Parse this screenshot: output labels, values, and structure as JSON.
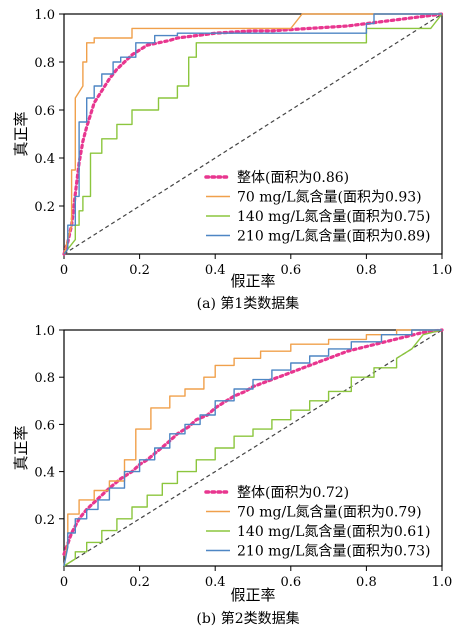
{
  "chart_data": [
    {
      "type": "line",
      "caption": "(a) 第1类数据集",
      "xlabel": "假正率",
      "ylabel": "真正率",
      "xlim": [
        0,
        1
      ],
      "ylim": [
        0,
        1
      ],
      "xticks": [
        "0",
        "0.2",
        "0.4",
        "0.6",
        "0.8",
        "1.0"
      ],
      "yticks": [
        "0.2",
        "0.4",
        "0.6",
        "0.8",
        "1.0"
      ],
      "legend_position": "bottom-right",
      "diagonal": true,
      "series": [
        {
          "name": "整体(面积为0.86)",
          "color": "#e8368f",
          "dash": "dotted",
          "x": [
            0,
            0.01,
            0.02,
            0.03,
            0.04,
            0.05,
            0.06,
            0.07,
            0.08,
            0.1,
            0.12,
            0.14,
            0.16,
            0.18,
            0.2,
            0.22,
            0.25,
            0.28,
            0.3,
            0.35,
            0.4,
            0.45,
            0.5,
            0.55,
            0.6,
            0.65,
            0.7,
            0.75,
            0.8,
            0.85,
            0.9,
            0.95,
            1.0
          ],
          "y": [
            0,
            0.05,
            0.12,
            0.25,
            0.38,
            0.47,
            0.53,
            0.58,
            0.63,
            0.68,
            0.73,
            0.77,
            0.8,
            0.83,
            0.85,
            0.87,
            0.88,
            0.89,
            0.9,
            0.91,
            0.92,
            0.925,
            0.93,
            0.93,
            0.935,
            0.94,
            0.945,
            0.95,
            0.96,
            0.97,
            0.98,
            0.99,
            1.0
          ]
        },
        {
          "name": "70 mg/L氮含量(面积为0.93)",
          "color": "#f0a04b",
          "dash": "solid",
          "x": [
            0,
            0.02,
            0.02,
            0.03,
            0.03,
            0.05,
            0.05,
            0.06,
            0.06,
            0.08,
            0.08,
            0.18,
            0.18,
            0.3,
            0.3,
            0.6,
            0.63,
            0.72,
            0.8,
            0.8,
            0.85,
            1.0
          ],
          "y": [
            0,
            0.12,
            0.35,
            0.35,
            0.65,
            0.7,
            0.8,
            0.8,
            0.88,
            0.88,
            0.9,
            0.9,
            0.94,
            0.94,
            0.94,
            0.94,
            1.0,
            1.0,
            1.0,
            1.0,
            1.0,
            1.0
          ]
        },
        {
          "name": "140 mg/L氮含量(面积为0.75)",
          "color": "#8cc63e",
          "dash": "solid",
          "x": [
            0,
            0.03,
            0.03,
            0.04,
            0.04,
            0.05,
            0.05,
            0.07,
            0.07,
            0.1,
            0.1,
            0.14,
            0.14,
            0.18,
            0.18,
            0.25,
            0.25,
            0.3,
            0.3,
            0.33,
            0.33,
            0.35,
            0.35,
            0.45,
            0.45,
            0.8,
            0.8,
            0.97,
            1.0
          ],
          "y": [
            0,
            0.06,
            0.12,
            0.12,
            0.18,
            0.18,
            0.24,
            0.24,
            0.42,
            0.42,
            0.48,
            0.48,
            0.54,
            0.54,
            0.6,
            0.6,
            0.65,
            0.65,
            0.7,
            0.7,
            0.82,
            0.82,
            0.88,
            0.88,
            0.88,
            0.88,
            0.94,
            0.94,
            1.0
          ]
        },
        {
          "name": "210 mg/L氮含量(面积为0.89)",
          "color": "#4e86c4",
          "dash": "solid",
          "x": [
            0,
            0.01,
            0.01,
            0.03,
            0.03,
            0.04,
            0.04,
            0.06,
            0.06,
            0.08,
            0.08,
            0.1,
            0.1,
            0.13,
            0.13,
            0.15,
            0.15,
            0.19,
            0.19,
            0.22,
            0.22,
            0.24,
            0.24,
            0.3,
            0.3,
            0.8,
            0.8,
            0.82,
            0.82,
            1.0
          ],
          "y": [
            0,
            0.02,
            0.12,
            0.12,
            0.24,
            0.24,
            0.55,
            0.55,
            0.65,
            0.65,
            0.7,
            0.7,
            0.75,
            0.75,
            0.8,
            0.8,
            0.82,
            0.82,
            0.88,
            0.88,
            0.88,
            0.88,
            0.91,
            0.91,
            0.92,
            0.92,
            0.96,
            0.96,
            1.0,
            1.0
          ]
        }
      ]
    },
    {
      "type": "line",
      "caption": "(b) 第2类数据集",
      "xlabel": "假正率",
      "ylabel": "真正率",
      "xlim": [
        0,
        1
      ],
      "ylim": [
        0,
        1
      ],
      "xticks": [
        "0",
        "0.2",
        "0.4",
        "0.6",
        "0.8",
        "1.0"
      ],
      "yticks": [
        "0.2",
        "0.4",
        "0.6",
        "0.8",
        "1.0"
      ],
      "legend_position": "bottom-right",
      "diagonal": true,
      "series": [
        {
          "name": "整体(面积为0.72)",
          "color": "#e8368f",
          "dash": "dotted",
          "x": [
            0,
            0.02,
            0.04,
            0.06,
            0.08,
            0.1,
            0.12,
            0.15,
            0.18,
            0.2,
            0.22,
            0.25,
            0.28,
            0.3,
            0.33,
            0.35,
            0.38,
            0.4,
            0.43,
            0.45,
            0.48,
            0.5,
            0.55,
            0.6,
            0.65,
            0.7,
            0.75,
            0.8,
            0.85,
            0.9,
            0.95,
            1.0
          ],
          "y": [
            0.05,
            0.14,
            0.2,
            0.24,
            0.27,
            0.3,
            0.33,
            0.37,
            0.4,
            0.43,
            0.45,
            0.49,
            0.53,
            0.56,
            0.59,
            0.62,
            0.64,
            0.67,
            0.7,
            0.72,
            0.74,
            0.76,
            0.79,
            0.82,
            0.85,
            0.88,
            0.91,
            0.93,
            0.95,
            0.97,
            0.99,
            1.0
          ]
        },
        {
          "name": "70 mg/L氮含量(面积为0.79)",
          "color": "#f0a04b",
          "dash": "solid",
          "x": [
            0,
            0.01,
            0.01,
            0.04,
            0.04,
            0.08,
            0.08,
            0.12,
            0.12,
            0.16,
            0.16,
            0.19,
            0.19,
            0.23,
            0.23,
            0.28,
            0.28,
            0.32,
            0.32,
            0.37,
            0.37,
            0.4,
            0.4,
            0.45,
            0.45,
            0.52,
            0.52,
            0.6,
            0.6,
            0.7,
            0.7,
            0.8,
            0.8,
            0.88,
            0.88,
            1.0
          ],
          "y": [
            0,
            0.1,
            0.22,
            0.22,
            0.28,
            0.28,
            0.32,
            0.32,
            0.36,
            0.36,
            0.45,
            0.45,
            0.58,
            0.58,
            0.67,
            0.67,
            0.72,
            0.72,
            0.75,
            0.75,
            0.8,
            0.8,
            0.85,
            0.85,
            0.88,
            0.88,
            0.91,
            0.91,
            0.94,
            0.94,
            0.96,
            0.96,
            0.98,
            0.98,
            1.0,
            1.0
          ]
        },
        {
          "name": "140 mg/L氮含量(面积为0.61)",
          "color": "#8cc63e",
          "dash": "solid",
          "x": [
            0,
            0.03,
            0.03,
            0.06,
            0.06,
            0.1,
            0.1,
            0.14,
            0.14,
            0.18,
            0.18,
            0.22,
            0.22,
            0.26,
            0.26,
            0.3,
            0.3,
            0.35,
            0.35,
            0.4,
            0.4,
            0.45,
            0.45,
            0.5,
            0.5,
            0.55,
            0.55,
            0.6,
            0.6,
            0.65,
            0.65,
            0.7,
            0.7,
            0.76,
            0.76,
            0.82,
            0.82,
            0.88,
            0.88,
            0.92,
            0.95,
            1.0
          ],
          "y": [
            0,
            0.03,
            0.06,
            0.06,
            0.1,
            0.1,
            0.15,
            0.15,
            0.2,
            0.2,
            0.25,
            0.25,
            0.3,
            0.3,
            0.35,
            0.35,
            0.4,
            0.4,
            0.45,
            0.45,
            0.5,
            0.5,
            0.55,
            0.55,
            0.58,
            0.58,
            0.62,
            0.62,
            0.66,
            0.66,
            0.7,
            0.7,
            0.74,
            0.74,
            0.8,
            0.8,
            0.84,
            0.84,
            0.88,
            0.92,
            0.98,
            1.0
          ]
        },
        {
          "name": "210 mg/L氮含量(面积为0.73)",
          "color": "#4e86c4",
          "dash": "solid",
          "x": [
            0,
            0.01,
            0.01,
            0.03,
            0.03,
            0.06,
            0.06,
            0.09,
            0.09,
            0.12,
            0.12,
            0.16,
            0.16,
            0.2,
            0.2,
            0.24,
            0.24,
            0.28,
            0.28,
            0.32,
            0.32,
            0.36,
            0.36,
            0.4,
            0.4,
            0.45,
            0.45,
            0.5,
            0.5,
            0.55,
            0.55,
            0.6,
            0.6,
            0.65,
            0.65,
            0.7,
            0.7,
            0.76,
            0.76,
            0.84,
            0.84,
            0.92,
            0.92,
            1.0
          ],
          "y": [
            0,
            0.08,
            0.14,
            0.14,
            0.2,
            0.2,
            0.24,
            0.24,
            0.28,
            0.28,
            0.33,
            0.33,
            0.4,
            0.4,
            0.45,
            0.45,
            0.5,
            0.5,
            0.56,
            0.56,
            0.6,
            0.6,
            0.64,
            0.64,
            0.7,
            0.7,
            0.75,
            0.75,
            0.79,
            0.79,
            0.83,
            0.83,
            0.86,
            0.86,
            0.89,
            0.89,
            0.92,
            0.92,
            0.95,
            0.95,
            0.98,
            0.98,
            1.0,
            1.0
          ]
        }
      ]
    }
  ]
}
